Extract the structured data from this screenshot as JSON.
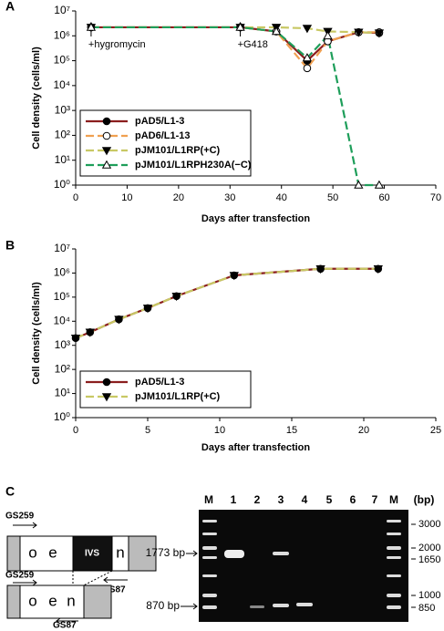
{
  "chart_data": [
    {
      "type": "line",
      "panel": "A",
      "x_label": "Days after transfection",
      "y_label": "Cell density (cells/ml)",
      "xlim": [
        0,
        70
      ],
      "xticks": [
        0,
        10,
        20,
        30,
        40,
        50,
        60,
        70
      ],
      "ylim": [
        1,
        10000000
      ],
      "log_scale": true,
      "yticks": [
        {
          "value": 1,
          "label": "10⁰"
        },
        {
          "value": 10,
          "label": "10¹"
        },
        {
          "value": 100,
          "label": "10²"
        },
        {
          "value": 1000,
          "label": "10³"
        },
        {
          "value": 10000,
          "label": "10⁴"
        },
        {
          "value": 100000,
          "label": "10⁵"
        },
        {
          "value": 1000000,
          "label": "10⁶"
        },
        {
          "value": 10000000,
          "label": "10⁷"
        }
      ],
      "annotations": [
        {
          "text": "+hygromycin",
          "x": 3
        },
        {
          "text": "+G418",
          "x": 32
        }
      ],
      "legend": "lower left",
      "series": [
        {
          "name": "pAD5/L1-3",
          "color": "#8b1e1e",
          "marker": "filled-circle",
          "dash": "solid",
          "x": [
            3,
            32,
            39,
            45,
            49,
            55,
            59
          ],
          "values": [
            2200000,
            2200000,
            1500000,
            100000,
            600000,
            1400000,
            1300000
          ]
        },
        {
          "name": "pAD6/L1-13",
          "color": "#f0a050",
          "marker": "open-circle",
          "dash": "long-dash",
          "x": [
            3,
            32,
            39,
            45,
            49,
            55,
            59
          ],
          "values": [
            2200000,
            2200000,
            1500000,
            50000,
            600000,
            1400000,
            1400000
          ]
        },
        {
          "name": "pJM101/L1RP(+C)",
          "color": "#c8c864",
          "marker": "filled-triangle-down",
          "dash": "long-dash",
          "x": [
            3,
            32,
            39,
            45,
            49,
            55,
            59
          ],
          "values": [
            2200000,
            2200000,
            2200000,
            2000000,
            1500000,
            1400000,
            1300000
          ]
        },
        {
          "name": "pJM101/L1RPH230A(−C)",
          "color": "#1e9e5a",
          "marker": "open-triangle-up",
          "dash": "long-dash",
          "x": [
            3,
            32,
            39,
            45,
            49,
            55,
            59
          ],
          "values": [
            2200000,
            2200000,
            1500000,
            130000,
            1000000,
            1,
            1
          ]
        }
      ]
    },
    {
      "type": "line",
      "panel": "B",
      "x_label": "Days after transfection",
      "y_label": "Cell density (cells/ml)",
      "xlim": [
        0,
        25
      ],
      "xticks": [
        0,
        5,
        10,
        15,
        20,
        25
      ],
      "ylim": [
        1,
        10000000
      ],
      "log_scale": true,
      "yticks": [
        {
          "value": 1,
          "label": "10⁰"
        },
        {
          "value": 10,
          "label": "10¹"
        },
        {
          "value": 100,
          "label": "10²"
        },
        {
          "value": 1000,
          "label": "10³"
        },
        {
          "value": 10000,
          "label": "10⁴"
        },
        {
          "value": 100000,
          "label": "10⁵"
        },
        {
          "value": 1000000,
          "label": "10⁶"
        },
        {
          "value": 10000000,
          "label": "10⁷"
        }
      ],
      "legend": "lower left",
      "series": [
        {
          "name": "pAD5/L1-3",
          "color": "#8b1e1e",
          "marker": "filled-circle",
          "dash": "solid",
          "x": [
            0,
            1,
            3,
            5,
            7,
            11,
            17,
            21
          ],
          "values": [
            2000,
            3500,
            12000,
            35000,
            110000,
            800000,
            1500000,
            1500000
          ]
        },
        {
          "name": "pJM101/L1RP(+C)",
          "color": "#c8c864",
          "marker": "filled-triangle-down",
          "dash": "long-dash",
          "x": [
            0,
            1,
            3,
            5,
            7,
            11,
            17,
            21
          ],
          "values": [
            2000,
            3500,
            12000,
            35000,
            110000,
            800000,
            1500000,
            1500000
          ]
        }
      ]
    }
  ],
  "panel_c": {
    "label": "C",
    "diagram": {
      "primer_forward": "GS259",
      "primer_reverse": "GS87",
      "exon_o": "o",
      "exon_e": "e",
      "intron": "IVS",
      "exon_n": "n"
    },
    "gel": {
      "lanes": [
        "M",
        "1",
        "2",
        "3",
        "4",
        "5",
        "6",
        "7",
        "M",
        "(bp)"
      ],
      "markers": [
        3000,
        2000,
        1650,
        1000,
        850
      ],
      "band_labels": [
        "1773 bp",
        "870 bp"
      ]
    }
  }
}
